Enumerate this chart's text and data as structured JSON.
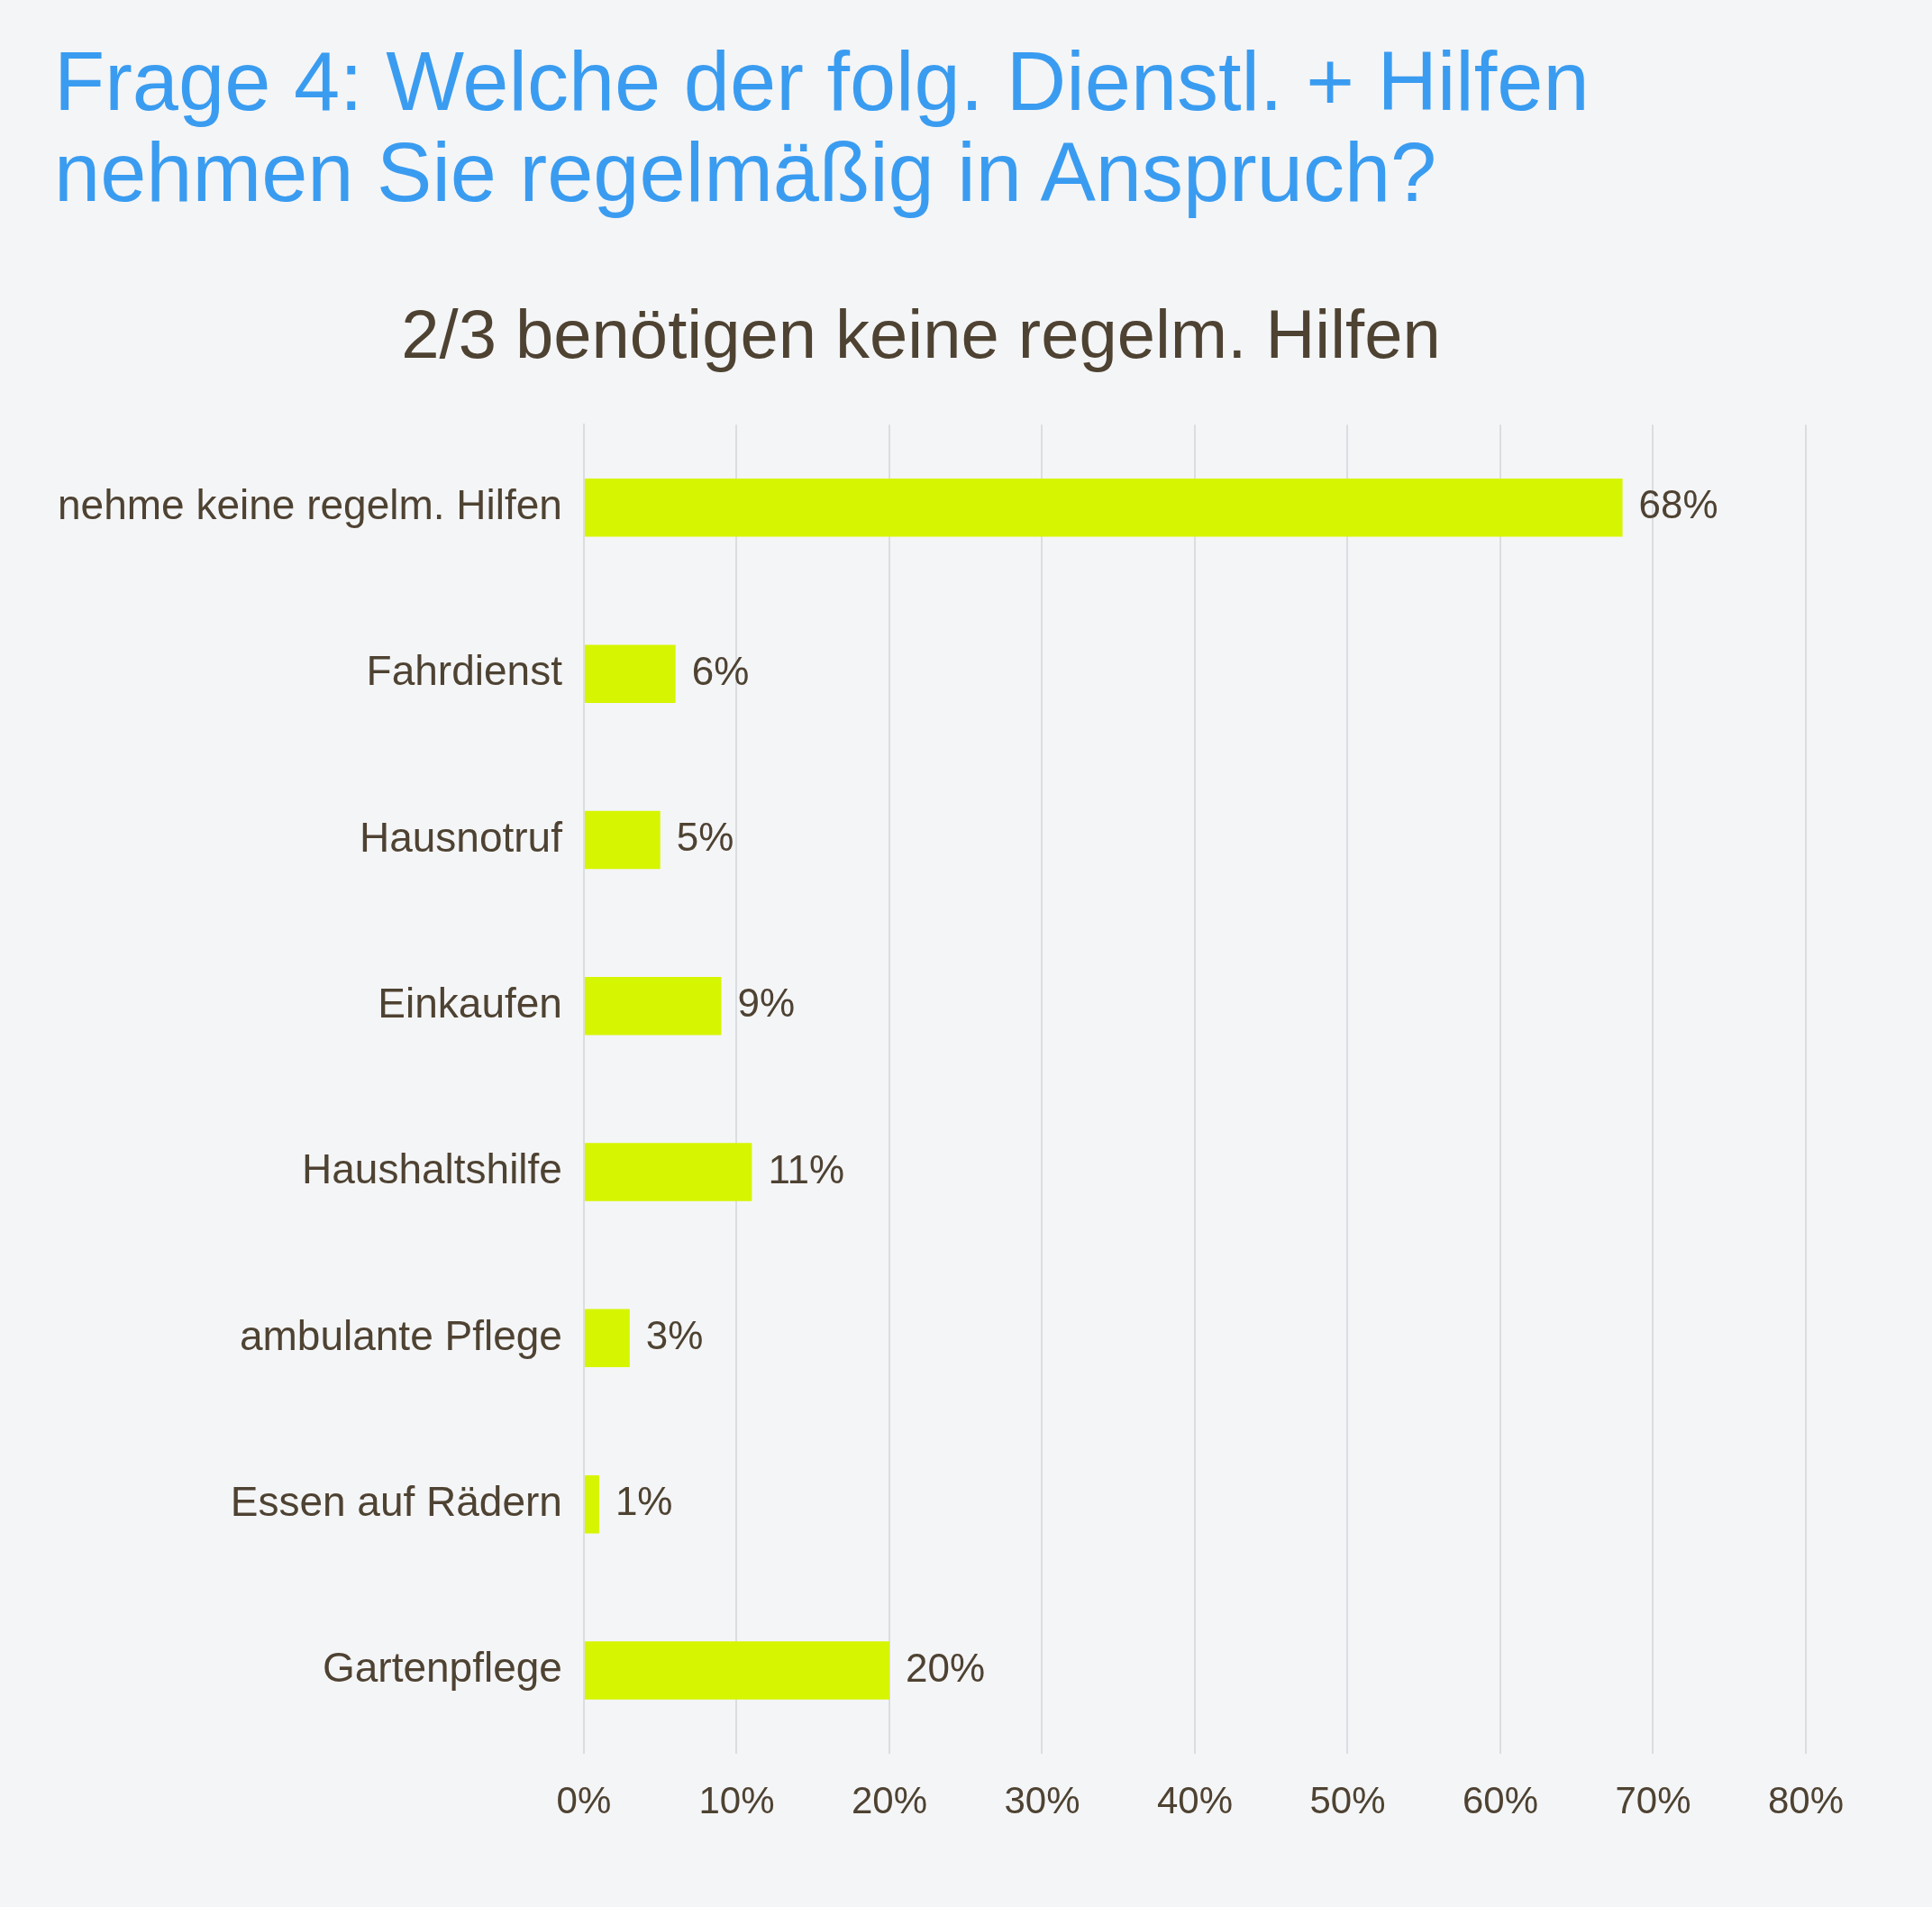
{
  "chart_data": {
    "type": "bar",
    "orientation": "horizontal",
    "title": "Frage 4: Welche der folg. Dienstl. + Hilfen nehmen Sie regelmäßig in Anspruch?",
    "subtitle": "2/3 benötigen keine regelm. Hilfen",
    "categories": [
      "nehme keine regelm. Hilfen",
      "Fahrdienst",
      "Hausnotruf",
      "Einkaufen",
      "Haushaltshilfe",
      "ambulante Pflege",
      "Essen auf Rädern",
      "Gartenpflege"
    ],
    "values": [
      68,
      6,
      5,
      9,
      11,
      3,
      1,
      20
    ],
    "value_labels": [
      "68%",
      "6%",
      "5%",
      "9%",
      "11%",
      "3%",
      "1%",
      "20%"
    ],
    "color": "#d6f500",
    "xlim": [
      0,
      80
    ],
    "xticks": [
      {
        "value": 0,
        "label": "0%"
      },
      {
        "value": 10,
        "label": "10%"
      },
      {
        "value": 20,
        "label": "20%"
      },
      {
        "value": 30,
        "label": "30%"
      },
      {
        "value": 40,
        "label": "40%"
      },
      {
        "value": 50,
        "label": "50%"
      },
      {
        "value": 60,
        "label": "60%"
      },
      {
        "value": 70,
        "label": "70%"
      },
      {
        "value": 80,
        "label": "80%"
      }
    ],
    "grid": "x"
  }
}
